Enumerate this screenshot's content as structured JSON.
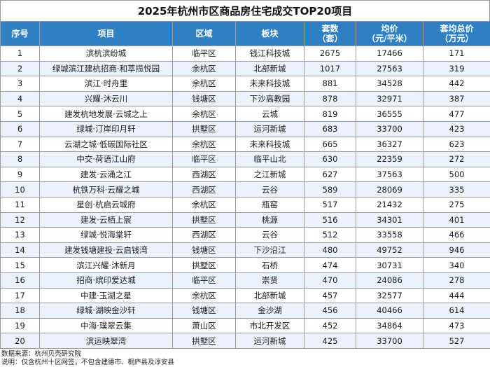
{
  "title": "2025年杭州市区商品房住宅成交TOP20项目",
  "columns": [
    "序号",
    "项目",
    "区域",
    "板块",
    "套数\n（套）",
    "均价\n（元/平米）",
    "套均总价\n（万元）"
  ],
  "rows": [
    [
      "1",
      "滨杭滨纷城",
      "临平区",
      "钱江科技城",
      "2675",
      "17466",
      "171"
    ],
    [
      "2",
      "绿城滨江建杭招商·和萃揽悦园",
      "余杭区",
      "北部新城",
      "1017",
      "27563",
      "319"
    ],
    [
      "3",
      "滨江·时舟里",
      "余杭区",
      "未来科技城",
      "881",
      "34528",
      "442"
    ],
    [
      "4",
      "兴耀·沐云川",
      "钱塘区",
      "下沙高教园",
      "878",
      "32971",
      "387"
    ],
    [
      "5",
      "建发杭地发展·云城之上",
      "余杭区",
      "云城",
      "819",
      "36555",
      "477"
    ],
    [
      "6",
      "绿城·汀岸印月轩",
      "拱墅区",
      "运河新城",
      "683",
      "33700",
      "423"
    ],
    [
      "7",
      "云湖之城·低碳国际社区",
      "余杭区",
      "未来科技城",
      "665",
      "36327",
      "623"
    ],
    [
      "8",
      "中交·荷语江山府",
      "临平区",
      "临平山北",
      "630",
      "22359",
      "272"
    ],
    [
      "9",
      "建发·云涌之江",
      "西湖区",
      "之江新城",
      "627",
      "37563",
      "500"
    ],
    [
      "10",
      "杭铁万科·云耀之城",
      "西湖区",
      "云谷",
      "589",
      "28069",
      "335"
    ],
    [
      "11",
      "星创·杭启云城府",
      "余杭区",
      "瓶窑",
      "517",
      "21432",
      "275"
    ],
    [
      "12",
      "建发·云栖上宸",
      "拱墅区",
      "桃源",
      "516",
      "34301",
      "401"
    ],
    [
      "13",
      "绿城·悦海棠轩",
      "西湖区",
      "云谷",
      "512",
      "33558",
      "466"
    ],
    [
      "14",
      "建发钱塘建投·云启钱湾",
      "钱塘区",
      "下沙沿江",
      "480",
      "49752",
      "946"
    ],
    [
      "15",
      "滨江兴耀·沐新月",
      "拱墅区",
      "石桥",
      "474",
      "30731",
      "340"
    ],
    [
      "16",
      "招商·缤印爱达城",
      "临平区",
      "崇贤",
      "470",
      "24086",
      "278"
    ],
    [
      "17",
      "中建·玉湖之星",
      "余杭区",
      "北部新城",
      "457",
      "32577",
      "444"
    ],
    [
      "18",
      "绿城·湖映金沙轩",
      "钱塘区",
      "金沙湖",
      "456",
      "40466",
      "614"
    ],
    [
      "19",
      "中海·璞翠云集",
      "萧山区",
      "市北开发区",
      "452",
      "34864",
      "473"
    ],
    [
      "20",
      "滨运映翠湾",
      "拱墅区",
      "运河新城",
      "425",
      "33700",
      "527"
    ]
  ],
  "footer": {
    "source": "数据来源：杭州贝壳研究院",
    "note": "说明：仅含杭州十区网签，不包含建德市、桐庐县及淳安县"
  },
  "colors": {
    "header_bg": "#2e7fc4",
    "header_text": "#ffffff",
    "stripe": "#eaf2fb",
    "border": "#9a9a9a"
  }
}
